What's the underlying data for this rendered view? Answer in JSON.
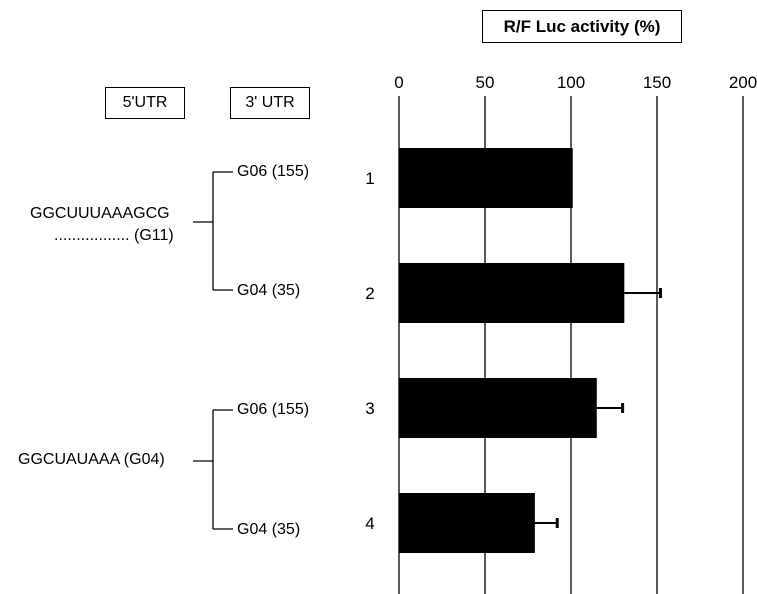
{
  "headers": {
    "five_utr": "5'UTR",
    "three_utr": "3' UTR"
  },
  "groups": [
    {
      "five_utr_line1": "GGCUUUAAAGCG",
      "five_utr_line2": "................. (G11)",
      "three_utr_top": "G06 (155)",
      "three_utr_bottom": "G04 (35)"
    },
    {
      "five_utr_line1": "GGCUAUAAA (G04)",
      "three_utr_top": "G06 (155)",
      "three_utr_bottom": "G04 (35)"
    }
  ],
  "chart_data": {
    "type": "bar",
    "orientation": "horizontal",
    "title": "R/F Luc activity (%)",
    "categories": [
      "1",
      "2",
      "3",
      "4"
    ],
    "values": [
      101,
      131,
      115,
      79
    ],
    "errors": [
      0,
      21,
      15,
      13
    ],
    "xlim": [
      0,
      200
    ],
    "xticks": [
      0,
      50,
      100,
      150,
      200
    ],
    "grid": true,
    "bar_color": "#000000"
  }
}
